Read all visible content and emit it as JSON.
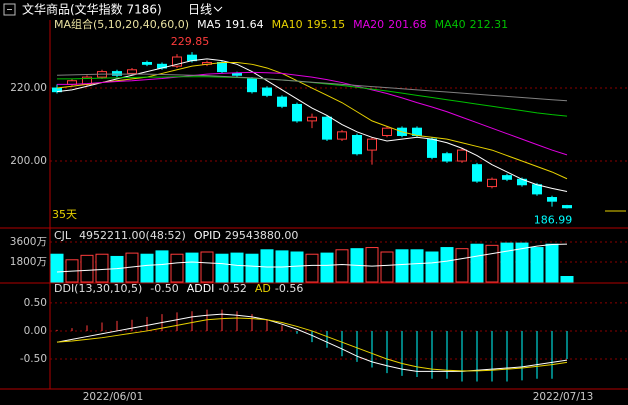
{
  "header": {
    "title": "文华商品(文华指数 7186)",
    "period": "日线"
  },
  "chart_data": [
    {
      "type": "candlestick",
      "title": "MA组合(5,10,20,40,60,0)",
      "period_label": "35天",
      "categories": [
        null,
        null,
        null,
        null,
        "2022/06/01",
        null,
        null,
        null,
        null,
        null,
        null,
        null,
        null,
        null,
        null,
        null,
        null,
        null,
        null,
        null,
        null,
        null,
        null,
        null,
        null,
        null,
        null,
        null,
        null,
        null,
        null,
        null,
        null,
        null,
        "2022/07/13"
      ],
      "open": [
        220,
        221,
        221,
        223,
        224.5,
        224,
        227,
        226.5,
        226,
        229,
        226.5,
        227,
        224,
        222.5,
        220,
        217.5,
        215.5,
        211,
        212,
        206,
        207,
        203,
        207,
        209,
        209,
        206,
        202,
        200,
        199,
        193,
        196,
        195,
        193.5,
        190,
        187.8
      ],
      "high": [
        221,
        222.5,
        223.5,
        225,
        225,
        225.5,
        227.5,
        227,
        229.3,
        229.85,
        227.5,
        227.5,
        224.5,
        223,
        220.5,
        218,
        216,
        213,
        212.5,
        208.5,
        207.5,
        206.5,
        209.5,
        209.5,
        209.5,
        206.5,
        202.5,
        203.5,
        199.5,
        195.5,
        196.5,
        195.5,
        194,
        190.5,
        188
      ],
      "low": [
        218.5,
        220.5,
        220.5,
        222.5,
        223,
        223.5,
        226,
        225,
        225.5,
        227,
        226,
        224,
        223,
        218.5,
        217.5,
        214.5,
        210.5,
        209,
        205.5,
        205.5,
        201.5,
        199,
        206.5,
        206.5,
        206.5,
        200.5,
        199.5,
        199.5,
        194,
        192.5,
        194.5,
        193,
        190.5,
        187.5,
        186.99
      ],
      "close": [
        219,
        222,
        223,
        224.5,
        223.5,
        225,
        226.5,
        225.5,
        228.5,
        227.5,
        227,
        224.5,
        223.5,
        219,
        218,
        215,
        211,
        212,
        206,
        208,
        202,
        206,
        209,
        207,
        207,
        201,
        200,
        203,
        194.5,
        195,
        195,
        193.5,
        191,
        189,
        187.2
      ],
      "up_color": "#ff3c3c",
      "down_color": "#00ffff",
      "series": [
        {
          "name": "MA5",
          "color": "#ffffff",
          "values": [
            219,
            219.5,
            220.5,
            221.5,
            222.5,
            223.5,
            224.5,
            225.5,
            226.5,
            227.5,
            228,
            227.5,
            226.5,
            224.5,
            222,
            219.5,
            217,
            214.5,
            212.5,
            210,
            208,
            206.5,
            205.5,
            206,
            206.5,
            206,
            205,
            203.5,
            201.5,
            199,
            197,
            195,
            193.5,
            192.5,
            191.64
          ]
        },
        {
          "name": "MA10",
          "color": "#e8d200",
          "values": [
            220,
            220.5,
            221,
            221.5,
            222,
            222.5,
            223,
            224,
            225,
            226,
            226.5,
            227,
            227,
            226.5,
            225.5,
            224,
            222,
            220,
            218,
            216,
            213.5,
            211,
            209.5,
            208,
            207,
            206.5,
            206,
            205,
            204,
            203,
            201.5,
            200,
            198.5,
            197,
            195.15
          ]
        },
        {
          "name": "MA20",
          "color": "#e000e0",
          "values": [
            221,
            221,
            221.2,
            221.5,
            221.8,
            222,
            222.3,
            222.6,
            223,
            223.4,
            223.8,
            224,
            224.2,
            224.3,
            224.2,
            224,
            223.5,
            223,
            222.3,
            221.5,
            220.5,
            219.5,
            218.5,
            217.3,
            216,
            214.8,
            213.5,
            212,
            210.5,
            209,
            207.5,
            206,
            204.5,
            203,
            201.68
          ]
        },
        {
          "name": "MA40",
          "color": "#00c000",
          "values": [
            222.5,
            222.5,
            222.6,
            222.7,
            222.8,
            222.9,
            223,
            223,
            223.1,
            223.1,
            223.1,
            223,
            222.9,
            222.7,
            222.5,
            222.2,
            221.9,
            221.5,
            221.1,
            220.7,
            220.2,
            219.7,
            219.2,
            218.6,
            218,
            217.4,
            216.8,
            216.2,
            215.6,
            215,
            214.4,
            213.8,
            213.2,
            212.7,
            212.31
          ]
        },
        {
          "color": "#808080",
          "values": [
            223.5,
            223.6,
            223.7,
            223.8,
            223.8,
            223.8,
            223.8,
            223.7,
            223.6,
            223.5,
            223.4,
            223.2,
            223,
            222.8,
            222.5,
            222.2,
            221.9,
            221.6,
            221.3,
            221,
            220.7,
            220.4,
            220.1,
            219.8,
            219.5,
            219.2,
            218.9,
            218.6,
            218.3,
            218,
            217.7,
            217.4,
            217.1,
            216.8,
            216.5
          ]
        }
      ],
      "ylim": [
        182.2,
        235.9
      ],
      "yticks": [
        {
          "value": 220,
          "label": "220.00"
        },
        {
          "value": 200,
          "label": "200.00"
        }
      ],
      "grid": true
    },
    {
      "type": "volume",
      "title": "CJL",
      "series": [
        {
          "value_label": "4952211.00(48:52)",
          "values": [
            25000000,
            20000000,
            24000000,
            25000000,
            23000000,
            26000000,
            25000000,
            28000000,
            25000000,
            26000000,
            27000000,
            25000000,
            26000000,
            25000000,
            29000000,
            28000000,
            27000000,
            25000000,
            26000000,
            29000000,
            30000000,
            31000000,
            27000000,
            29000000,
            29000000,
            27000000,
            31000000,
            30000000,
            34000000,
            33000000,
            35000000,
            35000000,
            31000000,
            34000000,
            4952211
          ]
        },
        {
          "name": "OPID",
          "value_label": "29543880.00",
          "color": "#ffffff",
          "axis": "y2",
          "values": [
            26200000,
            26300000,
            26400000,
            26500000,
            26600000,
            26800000,
            27000000,
            27100000,
            27300000,
            27400000,
            27300000,
            27200000,
            27000000,
            26900000,
            26800000,
            26800000,
            26900000,
            27000000,
            27000000,
            27100000,
            27000000,
            26900000,
            27000000,
            27100000,
            27200000,
            27300000,
            27500000,
            27800000,
            28100000,
            28400000,
            28700000,
            29000000,
            29300000,
            29500000,
            29543880
          ]
        }
      ],
      "ylim": [
        0,
        45000000
      ],
      "yticks": [
        {
          "value": 36000000,
          "label": "3600万"
        },
        {
          "value": 18000000,
          "label": "1800万"
        }
      ],
      "y2lim": [
        25000000,
        31000000
      ],
      "grid": true
    },
    {
      "type": "histogram",
      "title": "DDI(13,30,10,5)",
      "series": [
        {
          "value_label": "-0.50",
          "values": [
            0.02,
            0.05,
            0.1,
            0.15,
            0.18,
            0.2,
            0.25,
            0.3,
            0.33,
            0.35,
            0.38,
            0.38,
            0.35,
            0.3,
            0.2,
            0.1,
            -0.05,
            -0.2,
            -0.3,
            -0.45,
            -0.55,
            -0.65,
            -0.75,
            -0.8,
            -0.82,
            -0.85,
            -0.85,
            -0.9,
            -0.9,
            -0.9,
            -0.9,
            -0.88,
            -0.85,
            -0.85,
            -0.5
          ]
        },
        {
          "name": "ADDI",
          "value_label": "-0.52",
          "color": "#ffffff",
          "values": [
            -0.2,
            -0.15,
            -0.1,
            -0.05,
            0,
            0.05,
            0.1,
            0.15,
            0.2,
            0.25,
            0.28,
            0.3,
            0.28,
            0.25,
            0.2,
            0.12,
            0.03,
            -0.08,
            -0.2,
            -0.32,
            -0.45,
            -0.55,
            -0.62,
            -0.68,
            -0.72,
            -0.72,
            -0.72,
            -0.72,
            -0.7,
            -0.68,
            -0.66,
            -0.64,
            -0.6,
            -0.56,
            -0.52
          ]
        },
        {
          "name": "AD",
          "value_label": "-0.56",
          "color": "#e8d200",
          "values": [
            -0.2,
            -0.18,
            -0.15,
            -0.12,
            -0.08,
            -0.04,
            0,
            0.05,
            0.1,
            0.15,
            0.2,
            0.22,
            0.23,
            0.22,
            0.2,
            0.15,
            0.08,
            0,
            -0.1,
            -0.2,
            -0.3,
            -0.4,
            -0.5,
            -0.58,
            -0.64,
            -0.68,
            -0.7,
            -0.71,
            -0.71,
            -0.7,
            -0.68,
            -0.66,
            -0.63,
            -0.6,
            -0.56
          ]
        }
      ],
      "up_color": "#ff3c3c",
      "down_color": "#00ffff",
      "ylim": [
        -0.98,
        0.8
      ],
      "yticks": [
        {
          "value": 0.5,
          "label": "0.50"
        },
        {
          "value": 0,
          "label": "0.00"
        },
        {
          "value": -0.5,
          "label": "-0.50"
        }
      ],
      "grid": true
    }
  ]
}
